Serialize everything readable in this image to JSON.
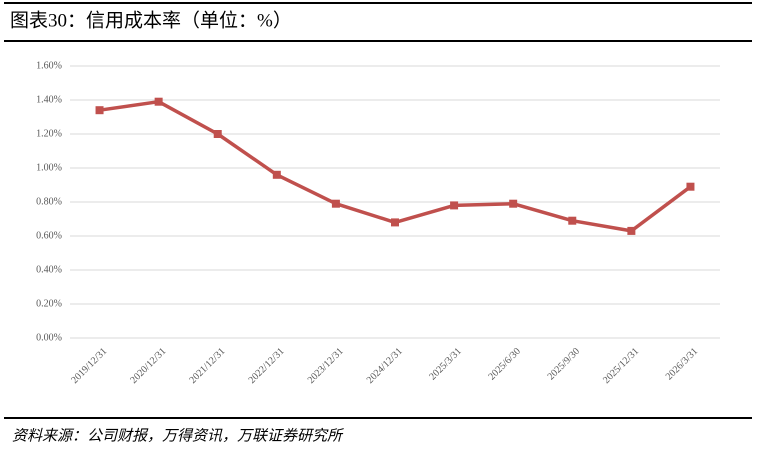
{
  "chart_data": {
    "type": "line",
    "title": "图表30：信用成本率（单位：%）",
    "source": "资料来源：公司财报，万得资讯，万联证券研究所",
    "categories": [
      "2019/12/31",
      "2020/12/31",
      "2021/12/31",
      "2022/12/31",
      "2023/12/31",
      "2024/12/31",
      "2025/3/31",
      "2025/6/30",
      "2025/9/30",
      "2025/12/31",
      "2026/3/31"
    ],
    "series": [
      {
        "name": "信用成本率",
        "color": "#c0504d",
        "values": [
          1.34,
          1.39,
          1.2,
          0.96,
          0.79,
          0.68,
          0.78,
          0.79,
          0.69,
          0.63,
          0.89
        ]
      }
    ],
    "ylim": [
      0,
      1.6
    ],
    "yticks": [
      {
        "value": 0,
        "label": "0.00%"
      },
      {
        "value": 0.2,
        "label": "0.20%"
      },
      {
        "value": 0.4,
        "label": "0.40%"
      },
      {
        "value": 0.6,
        "label": "0.60%"
      },
      {
        "value": 0.8,
        "label": "0.80%"
      },
      {
        "value": 1.0,
        "label": "1.00%"
      },
      {
        "value": 1.2,
        "label": "1.20%"
      },
      {
        "value": 1.4,
        "label": "1.40%"
      },
      {
        "value": 1.6,
        "label": "1.60%"
      }
    ],
    "grid": true
  }
}
